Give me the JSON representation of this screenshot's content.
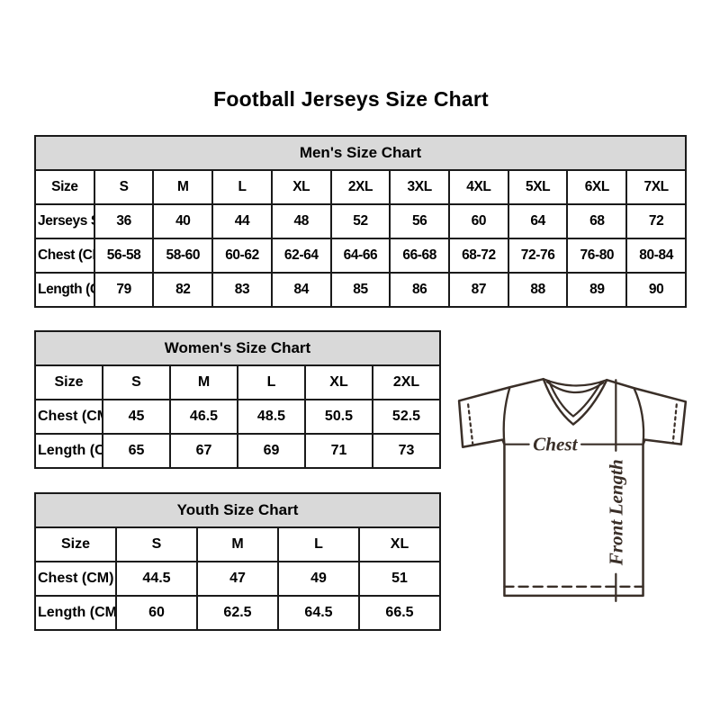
{
  "page": {
    "title": "Football Jerseys Size Chart"
  },
  "tables": {
    "mens": {
      "title": "Men's Size Chart",
      "rows": [
        [
          "Size",
          "S",
          "M",
          "L",
          "XL",
          "2XL",
          "3XL",
          "4XL",
          "5XL",
          "6XL",
          "7XL"
        ],
        [
          "Jerseys Size",
          "36",
          "40",
          "44",
          "48",
          "52",
          "56",
          "60",
          "64",
          "68",
          "72"
        ],
        [
          "Chest (CM)",
          "56-58",
          "58-60",
          "60-62",
          "62-64",
          "64-66",
          "66-68",
          "68-72",
          "72-76",
          "76-80",
          "80-84"
        ],
        [
          "Length (CM)",
          "79",
          "82",
          "83",
          "84",
          "85",
          "86",
          "87",
          "88",
          "89",
          "90"
        ]
      ]
    },
    "womens": {
      "title": "Women's Size Chart",
      "rows": [
        [
          "Size",
          "S",
          "M",
          "L",
          "XL",
          "2XL"
        ],
        [
          "Chest (CM)",
          "45",
          "46.5",
          "48.5",
          "50.5",
          "52.5"
        ],
        [
          "Length (CM)",
          "65",
          "67",
          "69",
          "71",
          "73"
        ]
      ]
    },
    "youth": {
      "title": "Youth Size Chart",
      "rows": [
        [
          "Size",
          "S",
          "M",
          "L",
          "XL"
        ],
        [
          "Chest (CM)",
          "44.5",
          "47",
          "49",
          "51"
        ],
        [
          "Length (CM)",
          "60",
          "62.5",
          "64.5",
          "66.5"
        ]
      ]
    }
  },
  "diagram": {
    "chest_label": "Chest",
    "front_length_label": "Front Length"
  },
  "colors": {
    "table_header_bg": "#d9d9d9",
    "table_border": "#1a1a1a",
    "text": "#000000",
    "jersey_line": "#3a2f28"
  }
}
